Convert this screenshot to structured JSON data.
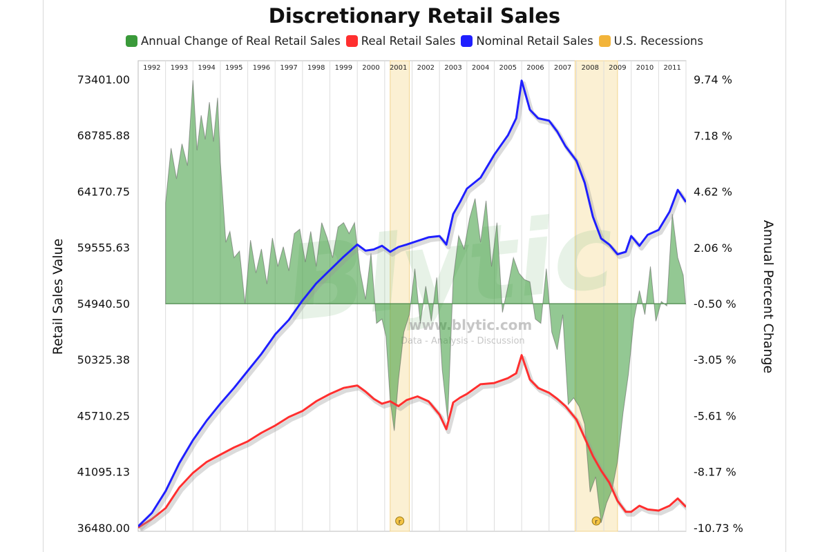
{
  "chart_data": {
    "type": "line",
    "title": "Discretionary Retail Sales",
    "ylabel": "Retail Sales Value",
    "y2label": "Annual Percent Change",
    "yticks": [
      "73401.00",
      "68785.88",
      "64170.75",
      "59555.63",
      "54940.50",
      "50325.38",
      "45710.25",
      "41095.13",
      "36480.00"
    ],
    "y2ticks": [
      "9.74 %",
      "7.18 %",
      "4.62 %",
      "2.06 %",
      "-0.50 %",
      "-3.05 %",
      "-5.61 %",
      "-8.17 %",
      "-10.73 %"
    ],
    "ylim": [
      36480,
      73401
    ],
    "y2lim": [
      -10.73,
      9.74
    ],
    "xlim": [
      1992.0,
      2012.0
    ],
    "years": [
      "1992",
      "1993",
      "1994",
      "1995",
      "1996",
      "1997",
      "1998",
      "1999",
      "2000",
      "2001",
      "2002",
      "2003",
      "2004",
      "2005",
      "2006",
      "2007",
      "2008",
      "2009",
      "2010",
      "2011"
    ],
    "grid": true,
    "legend_position": "top",
    "recessions": [
      {
        "start": 2001.2,
        "end": 2001.9,
        "marker": "r"
      },
      {
        "start": 2007.95,
        "end": 2009.5,
        "marker": "r"
      }
    ],
    "series": [
      {
        "name": "Annual Change of Real Retail Sales",
        "type": "area",
        "color": "#3a9a3a",
        "axis": "right",
        "x": [
          1993.0,
          1993.2,
          1993.4,
          1993.6,
          1993.8,
          1994.0,
          1994.15,
          1994.3,
          1994.45,
          1994.6,
          1994.75,
          1994.9,
          1995.0,
          1995.2,
          1995.35,
          1995.5,
          1995.7,
          1995.9,
          1996.1,
          1996.3,
          1996.5,
          1996.7,
          1996.9,
          1997.1,
          1997.3,
          1997.5,
          1997.7,
          1997.9,
          1998.1,
          1998.3,
          1998.5,
          1998.7,
          1998.9,
          1999.1,
          1999.3,
          1999.5,
          1999.7,
          1999.9,
          2000.1,
          2000.3,
          2000.5,
          2000.7,
          2000.9,
          2001.05,
          2001.2,
          2001.35,
          2001.5,
          2001.7,
          2001.9,
          2002.1,
          2002.3,
          2002.5,
          2002.7,
          2002.9,
          2003.1,
          2003.3,
          2003.5,
          2003.7,
          2003.9,
          2004.1,
          2004.3,
          2004.5,
          2004.7,
          2004.9,
          2005.1,
          2005.3,
          2005.5,
          2005.7,
          2005.9,
          2006.1,
          2006.3,
          2006.5,
          2006.7,
          2006.9,
          2007.1,
          2007.3,
          2007.5,
          2007.7,
          2007.9,
          2008.1,
          2008.3,
          2008.5,
          2008.7,
          2008.9,
          2009.1,
          2009.3,
          2009.5,
          2009.7,
          2009.9,
          2010.1,
          2010.3,
          2010.5,
          2010.7,
          2010.9,
          2011.1,
          2011.3,
          2011.5,
          2011.7,
          2011.9,
          2011.98
        ],
        "values": [
          4.1,
          6.6,
          5.2,
          6.8,
          5.8,
          9.7,
          6.5,
          8.1,
          7.0,
          8.7,
          6.9,
          8.9,
          6.0,
          2.3,
          2.8,
          1.6,
          1.9,
          -0.5,
          2.4,
          0.9,
          2.0,
          0.4,
          2.5,
          1.2,
          2.1,
          1.0,
          2.7,
          2.9,
          1.4,
          2.8,
          1.2,
          3.2,
          2.5,
          1.6,
          3.0,
          3.2,
          2.7,
          3.2,
          1.0,
          -0.3,
          1.8,
          -1.4,
          -1.2,
          -2.0,
          -4.9,
          -6.3,
          -4.0,
          -1.8,
          -1.0,
          1.1,
          -1.4,
          0.3,
          -1.3,
          0.7,
          -3.5,
          -5.8,
          0.6,
          2.6,
          2.0,
          3.4,
          4.3,
          2.3,
          4.2,
          1.2,
          3.2,
          -0.9,
          0.3,
          1.6,
          0.9,
          0.6,
          0.5,
          -1.2,
          -1.4,
          1.1,
          -1.8,
          -2.6,
          -1.0,
          -5.1,
          -4.8,
          -5.2,
          -6.0,
          -9.1,
          -8.4,
          -10.5,
          -9.6,
          -9.0,
          -7.7,
          -5.5,
          -3.7,
          -1.2,
          0.1,
          -1.0,
          1.2,
          -1.3,
          -0.4,
          -0.6,
          3.6,
          1.6,
          0.8,
          -0.4
        ]
      },
      {
        "name": "Real Retail Sales",
        "type": "line",
        "color": "#ff2f2f",
        "axis": "left",
        "x": [
          1992.0,
          1992.5,
          1993.0,
          1993.5,
          1994.0,
          1994.5,
          1995.0,
          1995.5,
          1996.0,
          1996.5,
          1997.0,
          1997.5,
          1998.0,
          1998.5,
          1999.0,
          1999.5,
          2000.0,
          2000.3,
          2000.6,
          2000.9,
          2001.2,
          2001.5,
          2001.8,
          2002.2,
          2002.6,
          2003.0,
          2003.25,
          2003.5,
          2003.75,
          2004.0,
          2004.5,
          2005.0,
          2005.5,
          2005.8,
          2006.0,
          2006.3,
          2006.6,
          2007.0,
          2007.3,
          2007.6,
          2008.0,
          2008.3,
          2008.6,
          2008.9,
          2009.2,
          2009.5,
          2009.8,
          2010.0,
          2010.3,
          2010.6,
          2011.0,
          2011.4,
          2011.7,
          2012.0
        ],
        "values": [
          36500,
          37200,
          38100,
          39800,
          41000,
          41900,
          42500,
          43100,
          43600,
          44300,
          44900,
          45600,
          46100,
          46900,
          47500,
          48000,
          48200,
          47700,
          47100,
          46700,
          46900,
          46500,
          47000,
          47300,
          46900,
          45800,
          44600,
          46800,
          47200,
          47500,
          48300,
          48400,
          48800,
          49200,
          50700,
          48700,
          48000,
          47600,
          47100,
          46500,
          45400,
          43900,
          42400,
          41200,
          40200,
          38700,
          37800,
          37800,
          38300,
          38000,
          37900,
          38300,
          38900,
          38200
        ]
      },
      {
        "name": "Nominal Retail Sales",
        "type": "line",
        "color": "#1f1fff",
        "axis": "left",
        "x": [
          1992.0,
          1992.5,
          1993.0,
          1993.5,
          1994.0,
          1994.5,
          1995.0,
          1995.5,
          1996.0,
          1996.5,
          1997.0,
          1997.5,
          1998.0,
          1998.5,
          1999.0,
          1999.5,
          2000.0,
          2000.3,
          2000.6,
          2000.9,
          2001.2,
          2001.5,
          2001.8,
          2002.2,
          2002.6,
          2003.0,
          2003.25,
          2003.5,
          2003.75,
          2004.0,
          2004.5,
          2005.0,
          2005.5,
          2005.8,
          2006.0,
          2006.3,
          2006.6,
          2007.0,
          2007.3,
          2007.6,
          2008.0,
          2008.3,
          2008.6,
          2008.9,
          2009.2,
          2009.5,
          2009.8,
          2010.0,
          2010.3,
          2010.6,
          2011.0,
          2011.4,
          2011.7,
          2012.0
        ],
        "values": [
          36600,
          37700,
          39500,
          41800,
          43700,
          45300,
          46700,
          48000,
          49400,
          50800,
          52400,
          53600,
          55200,
          56600,
          57700,
          58800,
          59800,
          59300,
          59400,
          59700,
          59200,
          59600,
          59800,
          60100,
          60400,
          60500,
          59800,
          62300,
          63300,
          64400,
          65300,
          67200,
          68800,
          70200,
          73300,
          70900,
          70200,
          70000,
          69100,
          67900,
          66700,
          64900,
          62100,
          60300,
          59800,
          59000,
          59200,
          60500,
          59700,
          60600,
          61000,
          62500,
          64300,
          63300
        ]
      }
    ]
  },
  "legend": [
    {
      "label": "Annual Change of Real Retail Sales",
      "color": "#3a9a3a"
    },
    {
      "label": "Real Retail Sales",
      "color": "#ff2f2f"
    },
    {
      "label": "Nominal Retail Sales",
      "color": "#1f1fff"
    },
    {
      "label": "U.S. Recessions",
      "color": "#f2b43a"
    }
  ],
  "watermark": {
    "logo": "Blytic",
    "url": "www.blytic.com",
    "tagline": "Data - Analysis - Discussion"
  }
}
